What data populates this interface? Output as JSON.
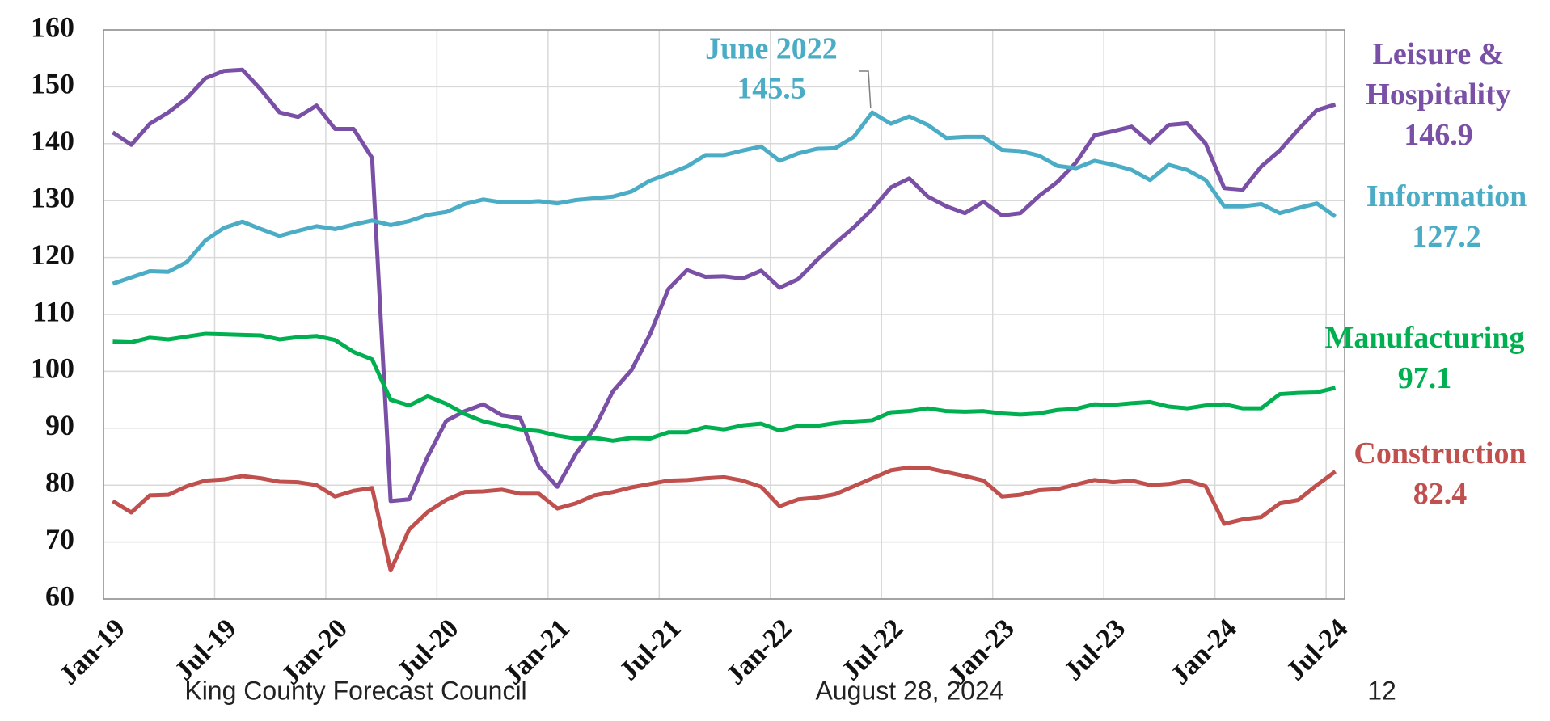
{
  "chart_data": {
    "type": "line",
    "categories": [
      "Jan-19",
      null,
      null,
      null,
      null,
      null,
      "Jul-19",
      null,
      null,
      null,
      null,
      null,
      "Jan-20",
      null,
      null,
      null,
      null,
      null,
      "Jul-20",
      null,
      null,
      null,
      null,
      null,
      "Jan-21",
      null,
      null,
      null,
      null,
      null,
      "Jul-21",
      null,
      null,
      null,
      null,
      null,
      "Jan-22",
      null,
      null,
      null,
      null,
      null,
      "Jul-22",
      null,
      null,
      null,
      null,
      null,
      "Jan-23",
      null,
      null,
      null,
      null,
      null,
      "Jul-23",
      null,
      null,
      null,
      null,
      null,
      "Jan-24",
      null,
      null,
      null,
      null,
      null,
      "Jul-24"
    ],
    "series": [
      {
        "name": "Leisure & Hospitality",
        "color": "#7a4fa6",
        "values": [
          142,
          139.8,
          143.5,
          145.5,
          148,
          151.5,
          152.8,
          153,
          149.5,
          145.5,
          144.7,
          146.7,
          142.6,
          142.6,
          137.5,
          77.2,
          77.5,
          85,
          91.3,
          93,
          94.2,
          92.3,
          91.8,
          83.3,
          79.7,
          85.5,
          90,
          96.5,
          100.2,
          106.5,
          114.5,
          117.8,
          116.6,
          116.7,
          116.3,
          117.7,
          114.7,
          116.2,
          119.5,
          122.5,
          125.3,
          128.5,
          132.3,
          133.9,
          130.7,
          129,
          127.8,
          129.8,
          127.4,
          127.8,
          130.8,
          133.3,
          136.7,
          141.5,
          142.2,
          143,
          140.2,
          143.3,
          143.6,
          140,
          132.2,
          131.9,
          136,
          138.8,
          142.5,
          145.9,
          146.9
        ]
      },
      {
        "name": "Information",
        "color": "#4bacc6",
        "values": [
          115.4,
          116.5,
          117.6,
          117.5,
          119.2,
          123,
          125.2,
          126.3,
          125,
          123.8,
          124.7,
          125.5,
          125,
          125.8,
          126.5,
          125.7,
          126.4,
          127.5,
          128,
          129.4,
          130.2,
          129.7,
          129.7,
          129.9,
          129.5,
          130.1,
          130.4,
          130.7,
          131.6,
          133.5,
          134.7,
          136,
          138,
          138,
          138.8,
          139.5,
          137,
          138.3,
          139.1,
          139.2,
          141.2,
          145.5,
          143.5,
          144.8,
          143.3,
          141,
          141.2,
          141.2,
          138.9,
          138.7,
          137.9,
          136.1,
          135.7,
          137,
          136.3,
          135.4,
          133.6,
          136.3,
          135.4,
          133.6,
          129,
          129,
          129.4,
          127.8,
          128.7,
          129.5,
          127.2
        ]
      },
      {
        "name": "Manufacturing",
        "color": "#00b050",
        "values": [
          105.2,
          105.1,
          105.9,
          105.6,
          106.1,
          106.6,
          106.5,
          106.4,
          106.3,
          105.6,
          106,
          106.2,
          105.5,
          103.4,
          102.1,
          95,
          94,
          95.6,
          94.3,
          92.5,
          91.2,
          90.5,
          89.8,
          89.5,
          88.7,
          88.2,
          88.3,
          87.8,
          88.3,
          88.2,
          89.3,
          89.3,
          90.2,
          89.8,
          90.5,
          90.8,
          89.6,
          90.4,
          90.4,
          90.9,
          91.2,
          91.4,
          92.8,
          93,
          93.5,
          93,
          92.9,
          93,
          92.6,
          92.4,
          92.6,
          93.2,
          93.4,
          94.2,
          94.1,
          94.4,
          94.6,
          93.8,
          93.5,
          94,
          94.2,
          93.5,
          93.5,
          96,
          96.2,
          96.3,
          97.1
        ]
      },
      {
        "name": "Construction",
        "color": "#c0504d",
        "values": [
          77.2,
          75.2,
          78.2,
          78.3,
          79.8,
          80.8,
          81,
          81.6,
          81.2,
          80.6,
          80.5,
          80,
          78,
          79,
          79.5,
          65,
          72.2,
          75.3,
          77.4,
          78.8,
          78.9,
          79.2,
          78.5,
          78.5,
          75.9,
          76.8,
          78.2,
          78.8,
          79.6,
          80.2,
          80.8,
          80.9,
          81.2,
          81.4,
          80.8,
          79.7,
          76.3,
          77.5,
          77.8,
          78.4,
          79.8,
          81.2,
          82.6,
          83.1,
          83,
          82.3,
          81.6,
          80.8,
          78,
          78.3,
          79.1,
          79.3,
          80.1,
          80.9,
          80.5,
          80.8,
          80,
          80.2,
          80.8,
          79.8,
          73.2,
          74,
          74.4,
          76.8,
          77.4,
          80,
          82.4
        ]
      }
    ],
    "ylim": [
      60,
      160
    ],
    "yticks": [
      60,
      70,
      80,
      90,
      100,
      110,
      120,
      130,
      140,
      150,
      160
    ],
    "grid": true,
    "annotations": [
      {
        "text": "June 2022",
        "series": 1,
        "index": 41
      }
    ],
    "footer": {
      "left": "King County Forecast Council",
      "center": "August 28, 2024",
      "page": "12"
    }
  }
}
